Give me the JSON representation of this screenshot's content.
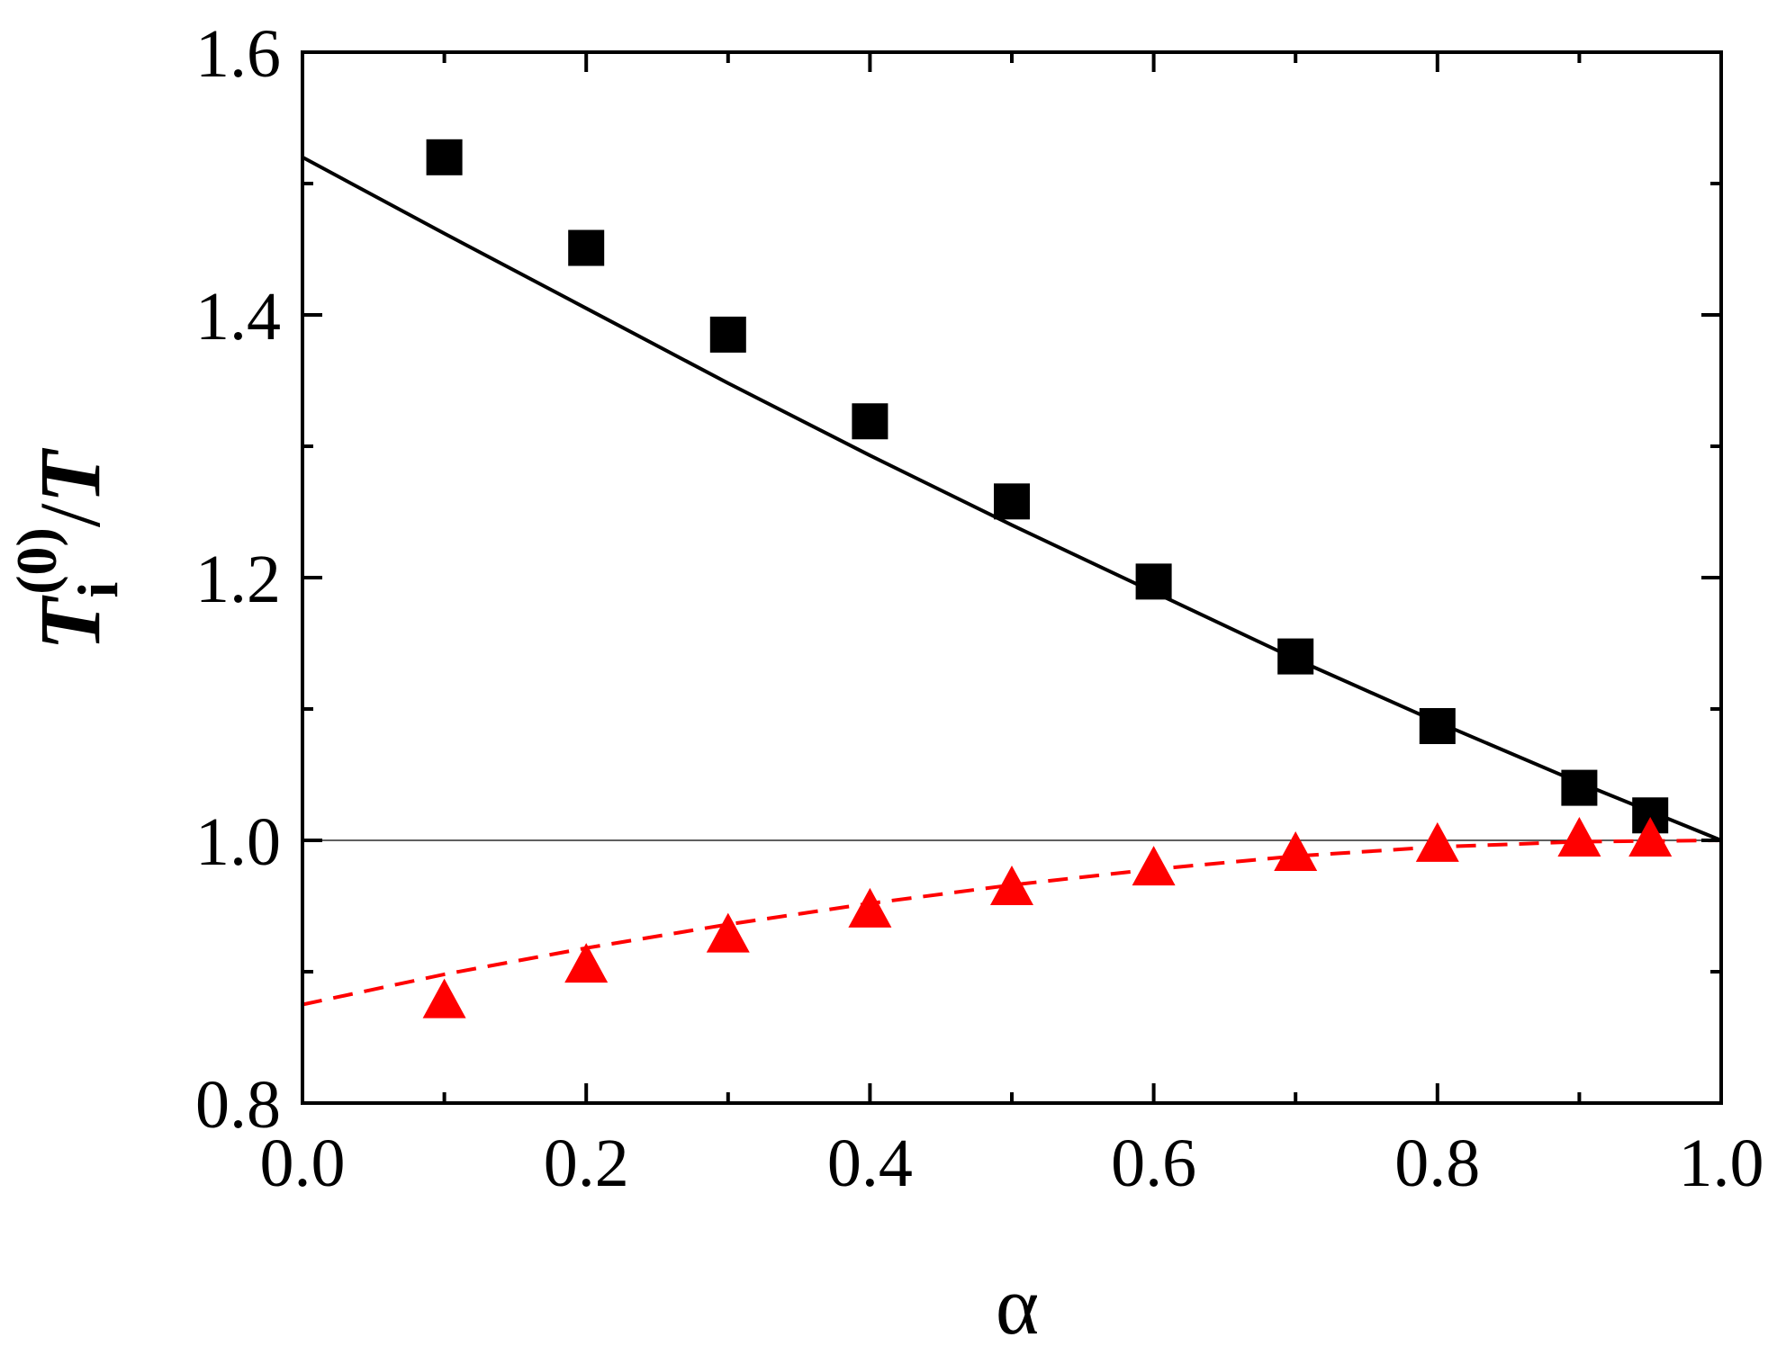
{
  "chart_data": {
    "type": "scatter",
    "xlabel": "α",
    "ylabel": {
      "base": "T",
      "subscript": "i",
      "superscript": "(0)",
      "slash": "/",
      "denominator": "T"
    },
    "xlim": [
      0.0,
      1.0
    ],
    "ylim": [
      0.8,
      1.6
    ],
    "x_ticks": [
      0.0,
      0.2,
      0.4,
      0.6,
      0.8,
      1.0
    ],
    "x_tick_labels": [
      "0.0",
      "0.2",
      "0.4",
      "0.6",
      "0.8",
      "1.0"
    ],
    "y_ticks": [
      0.8,
      1.0,
      1.2,
      1.4,
      1.6
    ],
    "y_tick_labels": [
      "0.8",
      "1.0",
      "1.2",
      "1.4",
      "1.6"
    ],
    "x_minor_ticks": [
      0.1,
      0.3,
      0.5,
      0.7,
      0.9
    ],
    "y_minor_ticks": [
      0.9,
      1.1,
      1.3,
      1.5
    ],
    "reference_line_y": 1.0,
    "series": [
      {
        "marker": "square",
        "color": "#000000",
        "x": [
          0.1,
          0.2,
          0.3,
          0.4,
          0.5,
          0.6,
          0.7,
          0.8,
          0.9,
          0.95
        ],
        "y": [
          1.52,
          1.451,
          1.385,
          1.319,
          1.258,
          1.197,
          1.14,
          1.087,
          1.04,
          1.019
        ]
      },
      {
        "marker": "triangle",
        "color": "#ff0000",
        "x": [
          0.1,
          0.2,
          0.3,
          0.4,
          0.5,
          0.6,
          0.7,
          0.8,
          0.9,
          0.95
        ],
        "y": [
          0.877,
          0.904,
          0.927,
          0.946,
          0.963,
          0.978,
          0.989,
          0.996,
          1.0,
          1.0
        ]
      }
    ],
    "curves": [
      {
        "style": "solid",
        "color": "#000000",
        "x": [
          0.0,
          0.1,
          0.2,
          0.3,
          0.4,
          0.5,
          0.6,
          0.7,
          0.8,
          0.9,
          1.0
        ],
        "y": [
          1.52,
          1.462,
          1.405,
          1.348,
          1.293,
          1.24,
          1.189,
          1.138,
          1.09,
          1.044,
          1.0
        ]
      },
      {
        "style": "dashed",
        "color": "#ff0000",
        "x": [
          0.0,
          0.1,
          0.2,
          0.3,
          0.4,
          0.5,
          0.6,
          0.7,
          0.8,
          0.9,
          1.0
        ],
        "y": [
          0.875,
          0.898,
          0.918,
          0.936,
          0.952,
          0.966,
          0.978,
          0.988,
          0.995,
          0.999,
          1.0
        ]
      }
    ]
  }
}
